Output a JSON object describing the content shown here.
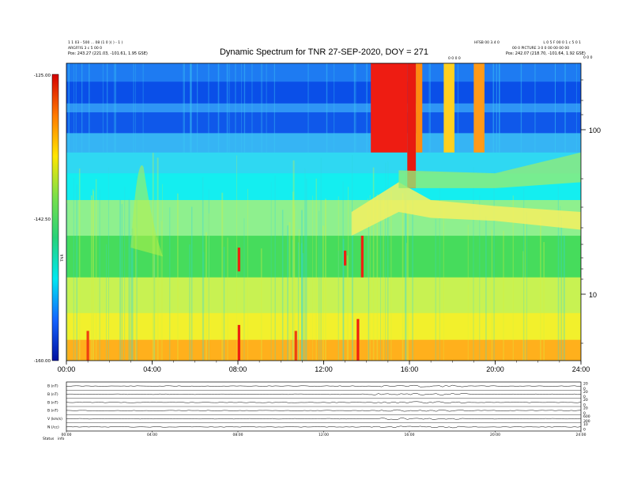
{
  "chart_data": {
    "type": "heatmap",
    "title": "Dynamic Spectrum for TNR 27-SEP-2020, DOY = 271",
    "header_left": [
      "1 1 03 - 500 ... 08 (1 0 )( ) - 1 )",
      "ARGFFIS 3 c 5 00 0",
      "Pos:   243.27 (221.03, -101.61, 1.95 GSE)"
    ],
    "header_right": [
      "HFSB 00 3.4 0",
      "L 0 5 F 00 0 1 c 5 0 1",
      "00 0  PICTURE 3 0 0 00 00 00 00",
      "Pos:   242.07 (218.70, -101.64, 1.92 GSE)"
    ],
    "header_mid_label": "0 0 0 0",
    "header_corner_label": "0 0 0",
    "x_ticks": [
      "00:00",
      "04:00",
      "08:00",
      "12:00",
      "16:00",
      "20:00",
      "24:00"
    ],
    "xlim_hours": [
      0,
      24
    ],
    "y_scale": "log",
    "y_ticks": [
      "100",
      "10"
    ],
    "colorbar": {
      "ticks": [
        "-125.00",
        "-142.50",
        "-160.00"
      ],
      "label": "TNR",
      "colors": [
        "#d40000",
        "#ff7a00",
        "#ffe600",
        "#78e04a",
        "#28d27a",
        "#00e8f0",
        "#1464ff",
        "#0010a0"
      ],
      "range": [
        -160,
        -125
      ]
    },
    "background_bands": [
      {
        "from": 0.0,
        "to": 0.062,
        "color": "#1e7bf2"
      },
      {
        "from": 0.062,
        "to": 0.135,
        "color": "#0a4fe8"
      },
      {
        "from": 0.135,
        "to": 0.165,
        "color": "#2f95f5"
      },
      {
        "from": 0.165,
        "to": 0.235,
        "color": "#0f58ea"
      },
      {
        "from": 0.235,
        "to": 0.3,
        "color": "#36b4f4"
      },
      {
        "from": 0.3,
        "to": 0.37,
        "color": "#2fd8f2"
      },
      {
        "from": 0.37,
        "to": 0.46,
        "color": "#14eef0"
      },
      {
        "from": 0.46,
        "to": 0.58,
        "color": "#8ef08e"
      },
      {
        "from": 0.58,
        "to": 0.72,
        "color": "#46dc5c"
      },
      {
        "from": 0.72,
        "to": 0.84,
        "color": "#c8f252"
      },
      {
        "from": 0.84,
        "to": 0.93,
        "color": "#f2f02c"
      },
      {
        "from": 0.93,
        "to": 1.0,
        "color": "#ffb01c"
      }
    ],
    "events": [
      {
        "start_h": 14.2,
        "end_h": 15.9,
        "y_from": 0.0,
        "y_to": 0.3,
        "color": "#ee1c12"
      },
      {
        "start_h": 15.9,
        "end_h": 16.3,
        "y_from": 0.0,
        "y_to": 0.42,
        "color": "#e81a10"
      },
      {
        "start_h": 16.3,
        "end_h": 16.6,
        "y_from": 0.0,
        "y_to": 0.3,
        "color": "#ff8a10"
      },
      {
        "start_h": 17.6,
        "end_h": 18.1,
        "y_from": 0.0,
        "y_to": 0.3,
        "color": "#ffd020"
      },
      {
        "start_h": 19.0,
        "end_h": 19.5,
        "y_from": 0.0,
        "y_to": 0.3,
        "color": "#ff9a18"
      }
    ],
    "spikes": [
      {
        "t_h": 8.05,
        "y_from": 0.62,
        "y_to": 0.7,
        "color": "#ee2010"
      },
      {
        "t_h": 13.8,
        "y_from": 0.58,
        "y_to": 0.72,
        "color": "#ee2010"
      },
      {
        "t_h": 13.0,
        "y_from": 0.63,
        "y_to": 0.68,
        "color": "#ee2010"
      },
      {
        "t_h": 8.05,
        "y_from": 0.88,
        "y_to": 1.0,
        "color": "#ee2010"
      },
      {
        "t_h": 13.6,
        "y_from": 0.86,
        "y_to": 1.0,
        "color": "#ee2010"
      },
      {
        "t_h": 1.0,
        "y_from": 0.9,
        "y_to": 1.0,
        "color": "#ee4010"
      },
      {
        "t_h": 10.7,
        "y_from": 0.9,
        "y_to": 1.0,
        "color": "#ee4010"
      }
    ]
  },
  "lower_panel": {
    "x_ticks": [
      "00:00",
      "04:00",
      "08:00",
      "12:00",
      "16:00",
      "20:00",
      "24:00"
    ],
    "rows": [
      {
        "left_label": "B (nT)",
        "right_labels": [
          "20",
          "0"
        ]
      },
      {
        "left_label": "B (nT)",
        "right_labels": [
          "20",
          "0"
        ]
      },
      {
        "left_label": "B (nT)",
        "right_labels": [
          "20",
          "0"
        ]
      },
      {
        "left_label": "B (nT)",
        "right_labels": [
          "20",
          "0"
        ]
      },
      {
        "left_label": "V (km/s)",
        "right_labels": [
          "600",
          "300"
        ]
      },
      {
        "left_label": "N (/cc)",
        "right_labels": [
          "10",
          "0"
        ]
      }
    ],
    "footer_left": [
      "Status",
      "info"
    ]
  }
}
